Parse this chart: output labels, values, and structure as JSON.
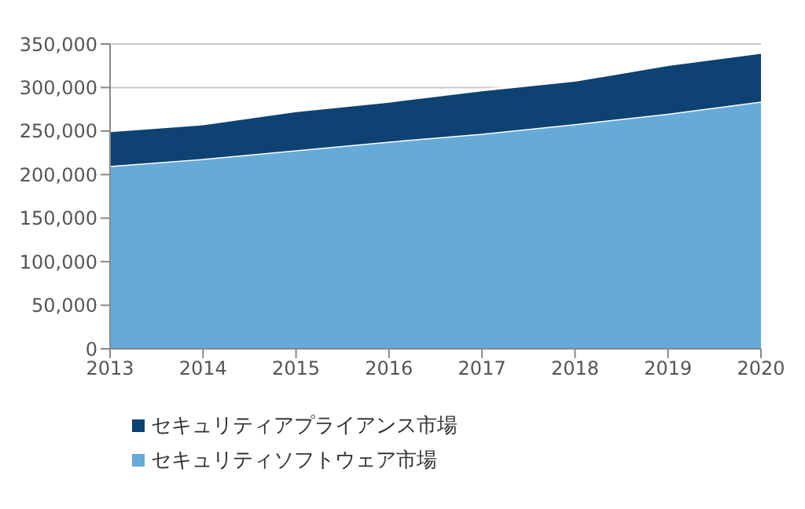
{
  "chart_data": {
    "type": "area",
    "stacked": true,
    "categories": [
      "2013",
      "2014",
      "2015",
      "2016",
      "2017",
      "2018",
      "2019",
      "2020"
    ],
    "series": [
      {
        "name": "セキュリティソフトウェア市場",
        "color": "#66aad9",
        "values": [
          210000,
          218000,
          228000,
          238000,
          247000,
          258000,
          270000,
          284000
        ]
      },
      {
        "name": "セキュリティアプライアンス市場",
        "color": "#0d4273",
        "values": [
          40000,
          40000,
          45000,
          46000,
          50000,
          50000,
          56000,
          56000
        ]
      }
    ],
    "ylim": [
      0,
      350000
    ],
    "yticks": [
      {
        "value": 0,
        "label": "0"
      },
      {
        "value": 50000,
        "label": "50,000"
      },
      {
        "value": 100000,
        "label": "100,000"
      },
      {
        "value": 150000,
        "label": "150,000"
      },
      {
        "value": 200000,
        "label": "200,000"
      },
      {
        "value": 250000,
        "label": "250,000"
      },
      {
        "value": 300000,
        "label": "300,000"
      },
      {
        "value": 350000,
        "label": "350,000"
      }
    ],
    "grid": "y",
    "legend": "bottom left"
  }
}
